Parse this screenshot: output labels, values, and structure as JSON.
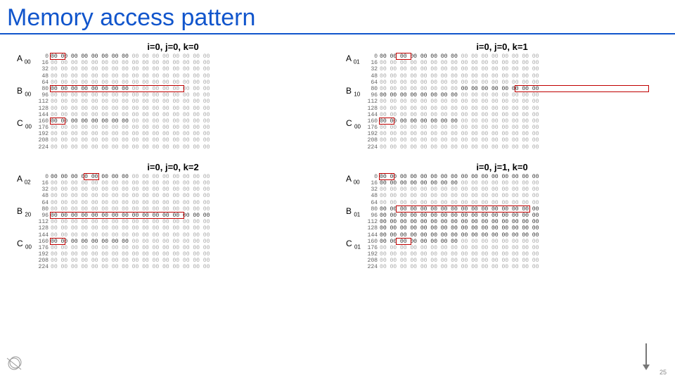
{
  "title": "Memory access pattern",
  "page_number": "25",
  "logo_label": "CERN",
  "colors": {
    "title": "#1155cc",
    "title_underline": "#1155cc",
    "highlight_border": "#c00000",
    "hex_dark": "#333333",
    "hex_light": "#aaaaaa",
    "hex_value": "00",
    "background": "#ffffff"
  },
  "layout": {
    "grid_cols": 2,
    "grid_rows": 2,
    "hex_cols_per_row": 16,
    "hex_value": "00",
    "row_offsets": [
      0,
      16,
      32,
      48,
      64,
      80,
      96,
      112,
      128,
      144,
      160,
      176,
      192,
      208,
      224
    ],
    "block_boundaries": [
      0,
      5,
      10,
      15
    ]
  },
  "panels": [
    {
      "caption": "i=0, j=0, k=0",
      "labels": [
        {
          "text": "A",
          "sub": "00",
          "row": 0
        },
        {
          "text": "B",
          "sub": "00",
          "row": 5
        },
        {
          "text": "C",
          "sub": "00",
          "row": 10
        }
      ],
      "dark_segments": [
        {
          "row": 0,
          "start": 0,
          "end": 7
        },
        {
          "row": 5,
          "start": 0,
          "end": 7
        },
        {
          "row": 10,
          "start": 0,
          "end": 7
        }
      ],
      "highlights": [
        {
          "row": 0,
          "start": 0,
          "end": 1
        },
        {
          "row": 5,
          "start": 0,
          "end": 8
        },
        {
          "row": 10,
          "start": 0,
          "end": 1
        }
      ]
    },
    {
      "caption": "i=0, j=0, k=1",
      "labels": [
        {
          "text": "A",
          "sub": "01",
          "row": 0
        },
        {
          "text": "B",
          "sub": "10",
          "row": 5
        },
        {
          "text": "C",
          "sub": "00",
          "row": 10
        }
      ],
      "dark_segments": [
        {
          "row": 0,
          "start": 0,
          "end": 7
        },
        {
          "row": 5,
          "start": 8,
          "end": 15
        },
        {
          "row": 6,
          "start": 0,
          "end": 7
        },
        {
          "row": 10,
          "start": 0,
          "end": 7
        }
      ],
      "highlights": [
        {
          "row": 0,
          "start": 1,
          "end": 2
        },
        {
          "row": 5,
          "start": 8,
          "end": 16
        },
        {
          "row": 10,
          "start": 0,
          "end": 1
        }
      ]
    },
    {
      "caption": "i=0, j=0, k=2",
      "labels": [
        {
          "text": "A",
          "sub": "02",
          "row": 0
        },
        {
          "text": "B",
          "sub": "20",
          "row": 5
        },
        {
          "text": "C",
          "sub": "00",
          "row": 10
        }
      ],
      "dark_segments": [
        {
          "row": 0,
          "start": 0,
          "end": 7
        },
        {
          "row": 6,
          "start": 0,
          "end": 15
        },
        {
          "row": 10,
          "start": 0,
          "end": 7
        }
      ],
      "highlights": [
        {
          "row": 0,
          "start": 2,
          "end": 3
        },
        {
          "row": 6,
          "start": 0,
          "end": 8
        },
        {
          "row": 10,
          "start": 0,
          "end": 1
        }
      ]
    },
    {
      "caption": "i=0, j=1, k=0",
      "labels": [
        {
          "text": "A",
          "sub": "00",
          "row": 0
        },
        {
          "text": "B",
          "sub": "01",
          "row": 5
        },
        {
          "text": "C",
          "sub": "01",
          "row": 10
        }
      ],
      "dark_segments": [
        {
          "row": 0,
          "start": 0,
          "end": 15
        },
        {
          "row": 1,
          "start": 0,
          "end": 7
        },
        {
          "row": 5,
          "start": 0,
          "end": 15
        },
        {
          "row": 6,
          "start": 0,
          "end": 15
        },
        {
          "row": 7,
          "start": 0,
          "end": 15
        },
        {
          "row": 8,
          "start": 0,
          "end": 15
        },
        {
          "row": 9,
          "start": 0,
          "end": 15
        },
        {
          "row": 10,
          "start": 0,
          "end": 7
        }
      ],
      "highlights": [
        {
          "row": 0,
          "start": 0,
          "end": 1
        },
        {
          "row": 5,
          "start": 1,
          "end": 9
        },
        {
          "row": 10,
          "start": 1,
          "end": 2
        }
      ]
    }
  ]
}
